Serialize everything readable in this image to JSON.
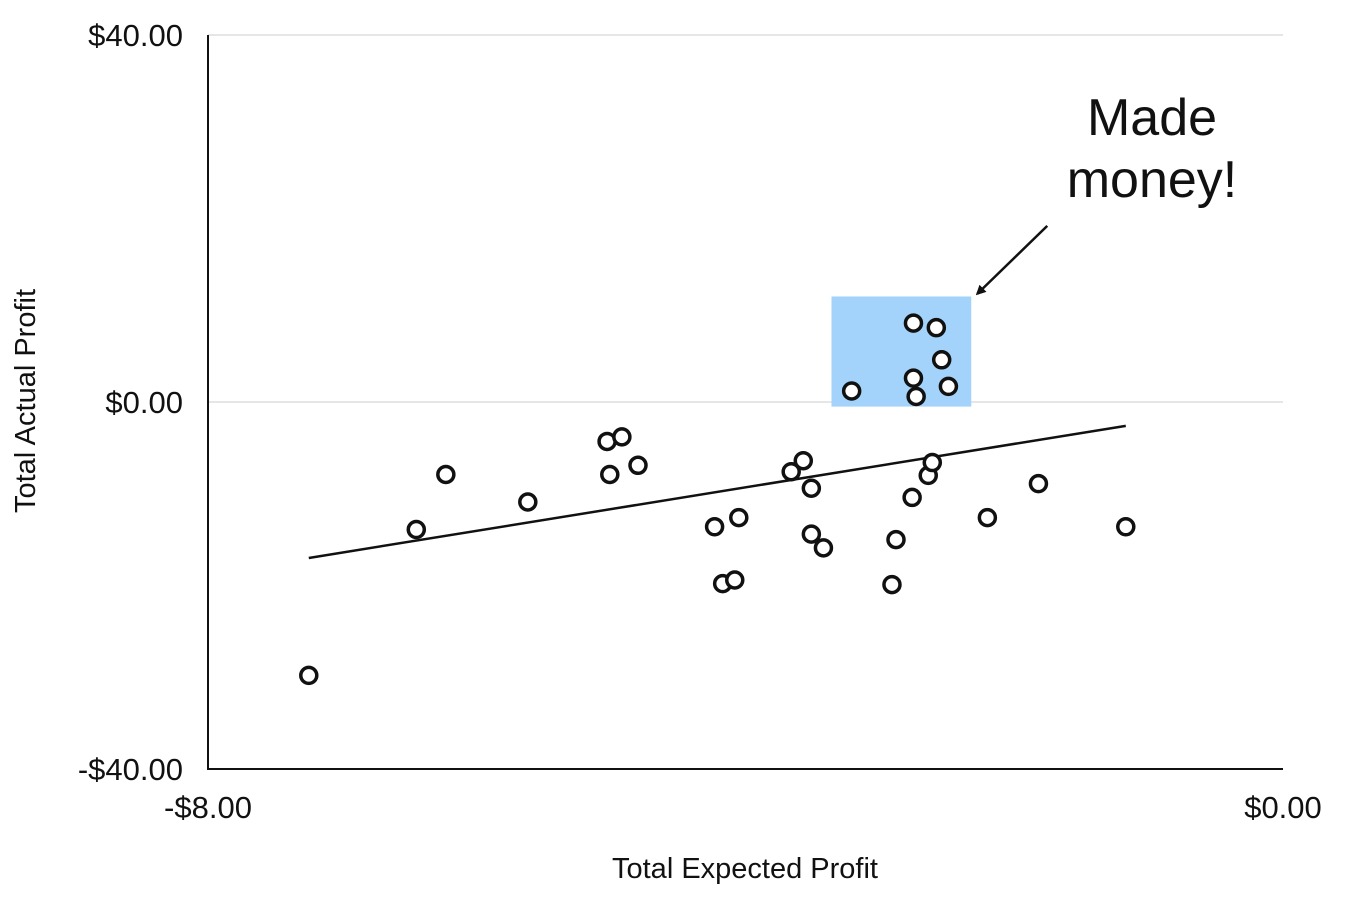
{
  "chart_data": {
    "type": "scatter",
    "title": "",
    "xlabel": "Total Expected Profit",
    "ylabel": "Total Actual Profit",
    "xlim": [
      -8,
      0
    ],
    "ylim": [
      -40,
      40
    ],
    "x_ticks": [
      {
        "value": -8,
        "label": "-$8.00"
      },
      {
        "value": 0,
        "label": "$0.00"
      }
    ],
    "y_ticks": [
      {
        "value": 40,
        "label": "$40.00"
      },
      {
        "value": 0,
        "label": "$0.00"
      },
      {
        "value": -40,
        "label": "-$40.00"
      }
    ],
    "grid": "horizontal",
    "series": [
      {
        "points": [
          {
            "x": -7.25,
            "y": -29.8
          },
          {
            "x": -6.45,
            "y": -13.9
          },
          {
            "x": -6.23,
            "y": -7.9
          },
          {
            "x": -5.62,
            "y": -10.9
          },
          {
            "x": -5.03,
            "y": -4.3
          },
          {
            "x": -4.92,
            "y": -3.8
          },
          {
            "x": -5.01,
            "y": -7.9
          },
          {
            "x": -4.8,
            "y": -6.9
          },
          {
            "x": -4.23,
            "y": -13.6
          },
          {
            "x": -4.05,
            "y": -12.6
          },
          {
            "x": -4.17,
            "y": -19.8
          },
          {
            "x": -4.08,
            "y": -19.4
          },
          {
            "x": -3.66,
            "y": -7.6
          },
          {
            "x": -3.57,
            "y": -6.4
          },
          {
            "x": -3.51,
            "y": -9.4
          },
          {
            "x": -3.51,
            "y": -14.4
          },
          {
            "x": -3.42,
            "y": -15.9
          },
          {
            "x": -2.88,
            "y": -15.0
          },
          {
            "x": -2.91,
            "y": -19.9
          },
          {
            "x": -2.76,
            "y": -10.4
          },
          {
            "x": -2.64,
            "y": -8.0
          },
          {
            "x": -2.61,
            "y": -6.6
          },
          {
            "x": -2.2,
            "y": -12.6
          },
          {
            "x": -1.82,
            "y": -8.9
          },
          {
            "x": -1.17,
            "y": -13.6
          },
          {
            "x": -3.21,
            "y": 1.2
          },
          {
            "x": -2.75,
            "y": 8.6
          },
          {
            "x": -2.58,
            "y": 8.1
          },
          {
            "x": -2.54,
            "y": 4.6
          },
          {
            "x": -2.75,
            "y": 2.6
          },
          {
            "x": -2.49,
            "y": 1.7
          },
          {
            "x": -2.73,
            "y": 0.6
          }
        ]
      }
    ],
    "trendline": {
      "x": [
        -7.25,
        -1.17
      ],
      "y": [
        -17.0,
        -2.6
      ]
    },
    "highlight_region": {
      "x": [
        -3.36,
        -2.32
      ],
      "y": [
        -0.5,
        11.5
      ],
      "color": "#a3d3fa"
    },
    "annotation": {
      "lines": [
        "Made",
        "money!"
      ],
      "arrow_to": {
        "x": -2.32,
        "y": 12.0
      }
    }
  },
  "colors": {
    "points": "#111111",
    "trendline": "#111111",
    "axis": "#111111",
    "grid": "#dedede"
  }
}
